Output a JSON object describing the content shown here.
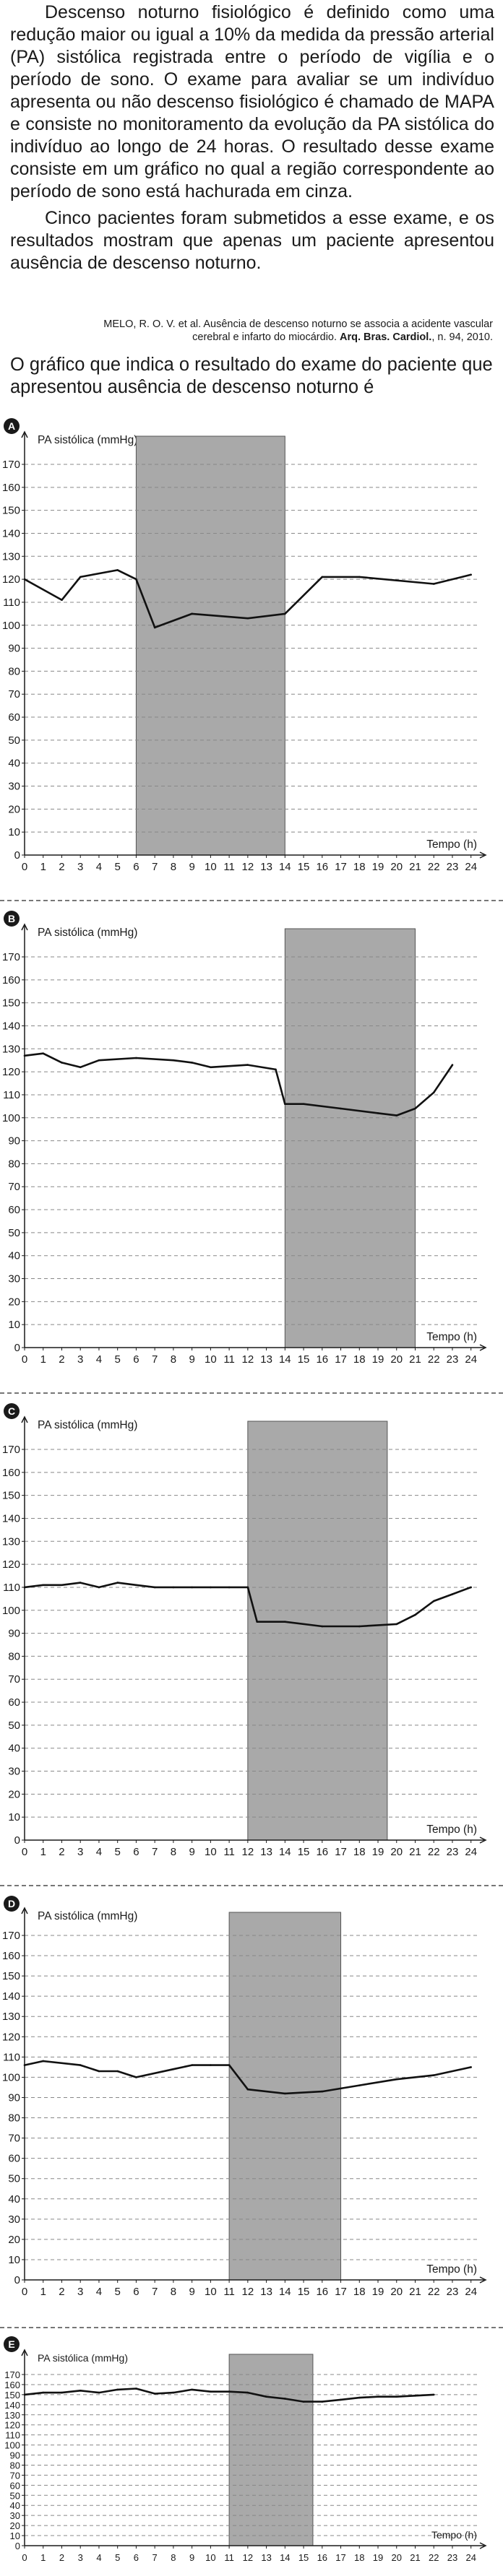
{
  "intro": {
    "paragraph1": "Descenso noturno fisiológico é definido como uma redução maior ou igual a 10% da medida da pressão arterial (PA) sistólica registrada entre o período de vigília e o período de sono. O exame para avaliar se um indivíduo apresenta ou não descenso fisiológico é chamado de MAPA e consiste no monitoramento da evolução da PA sistólica do indivíduo ao longo de 24 horas. O resultado desse exame consiste em um gráfico no qual a região correspondente ao período de sono está hachurada em cinza.",
    "paragraph2": "Cinco pacientes foram submetidos a esse exame, e os resultados mostram que apenas um paciente apresentou ausência de descenso noturno.",
    "citation_line1": "MELO, R. O. V. et al. Ausência de descenso noturno se associa a acidente vascular",
    "citation_line2_a": "cerebral e infarto do miocárdio. ",
    "citation_line2_b": "Arq. Bras. Cardiol.",
    "citation_line2_c": ", n. 94, 2010.",
    "question": "O gráfico que indica o resultado do exame do paciente que apresentou ausência de descenso noturno é"
  },
  "chart_data": [
    {
      "option": "A",
      "type": "line",
      "ylabel": "PA sistólica (mmHg)",
      "xlabel": "Tempo (h)",
      "xlim": [
        0,
        24
      ],
      "ylim": [
        0,
        170
      ],
      "sleep_period": [
        6,
        14
      ],
      "x": [
        0,
        2,
        3,
        5,
        6,
        7,
        9,
        12,
        14,
        16,
        18,
        22,
        24
      ],
      "values": [
        120,
        111,
        121,
        124,
        120,
        99,
        105,
        103,
        105,
        121,
        121,
        118,
        122
      ]
    },
    {
      "option": "B",
      "type": "line",
      "ylabel": "PA sistólica (mmHg)",
      "xlabel": "Tempo (h)",
      "xlim": [
        0,
        24
      ],
      "ylim": [
        0,
        170
      ],
      "sleep_period": [
        14,
        21
      ],
      "x": [
        0,
        1,
        2,
        3,
        4,
        6,
        8,
        9,
        10,
        12,
        13.5,
        14,
        15,
        17,
        19,
        20,
        21,
        22,
        23
      ],
      "values": [
        127,
        128,
        124,
        122,
        125,
        126,
        125,
        124,
        122,
        123,
        121,
        106,
        106,
        104,
        102,
        101,
        104,
        111,
        123
      ]
    },
    {
      "option": "C",
      "type": "line",
      "ylabel": "PA sistólica (mmHg)",
      "xlabel": "Tempo (h)",
      "xlim": [
        0,
        24
      ],
      "ylim": [
        0,
        170
      ],
      "sleep_period": [
        12,
        19.5
      ],
      "x": [
        0,
        1,
        2,
        3,
        4,
        5,
        6,
        7,
        8,
        9,
        10,
        11,
        12,
        12.5,
        14,
        16,
        18,
        20,
        21,
        22,
        23,
        24
      ],
      "values": [
        110,
        111,
        111,
        112,
        110,
        112,
        111,
        110,
        110,
        110,
        110,
        110,
        110,
        95,
        95,
        93,
        93,
        94,
        98,
        104,
        107,
        110
      ]
    },
    {
      "option": "D",
      "type": "line",
      "ylabel": "PA sistólica (mmHg)",
      "xlabel": "Tempo (h)",
      "xlim": [
        0,
        24
      ],
      "ylim": [
        0,
        170
      ],
      "sleep_period": [
        11,
        17
      ],
      "x": [
        0,
        1,
        3,
        4,
        5,
        6,
        8,
        9,
        10,
        11,
        12,
        14,
        16,
        18,
        20,
        22,
        24
      ],
      "values": [
        106,
        108,
        106,
        103,
        103,
        100,
        104,
        106,
        106,
        106,
        94,
        92,
        93,
        96,
        99,
        101,
        105
      ]
    },
    {
      "option": "E",
      "type": "line",
      "ylabel": "PA sistólica (mmHg)",
      "xlabel": "Tempo (h)",
      "xlim": [
        0,
        24
      ],
      "ylim": [
        0,
        170
      ],
      "sleep_period": [
        11,
        15.5
      ],
      "x": [
        0,
        1,
        2,
        3,
        4,
        5,
        6,
        7,
        8,
        9,
        10,
        11,
        12,
        13,
        14,
        15,
        16,
        17,
        18,
        19,
        20,
        21,
        22
      ],
      "values": [
        150,
        152,
        152,
        154,
        152,
        155,
        156,
        151,
        152,
        155,
        153,
        153,
        152,
        148,
        146,
        143,
        143,
        145,
        147,
        148,
        148,
        149,
        150
      ]
    }
  ]
}
